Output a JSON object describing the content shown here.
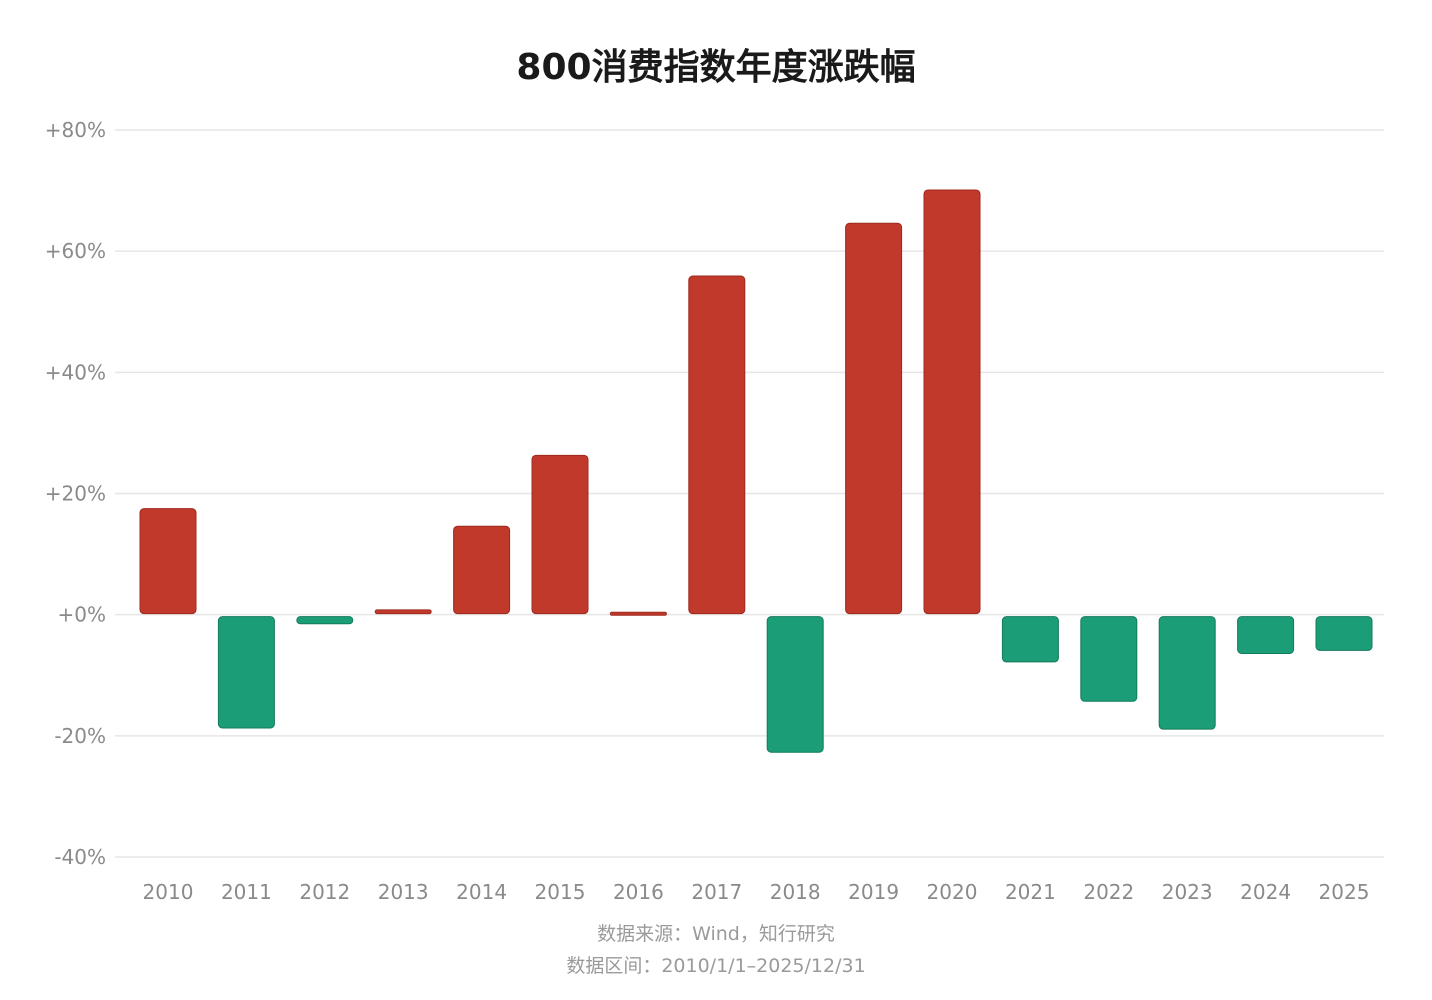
{
  "chart_data": {
    "type": "bar",
    "title": "800消费指数年度涨跌幅",
    "categories": [
      "2010",
      "2011",
      "2012",
      "2013",
      "2014",
      "2015",
      "2016",
      "2017",
      "2018",
      "2019",
      "2020",
      "2021",
      "2022",
      "2023",
      "2024",
      "2025"
    ],
    "values": [
      17.5,
      -18.7,
      -1.5,
      0.8,
      14.6,
      26.3,
      0.4,
      55.9,
      -22.7,
      64.6,
      70.1,
      -7.8,
      -14.3,
      -18.9,
      -6.4,
      -5.9
    ],
    "ylim": [
      -40,
      80
    ],
    "yticks": [
      80,
      60,
      40,
      20,
      0,
      -20,
      -40
    ],
    "ytick_labels": [
      "+80%",
      "+60%",
      "+40%",
      "+20%",
      "+0%",
      "-20%",
      "-40%"
    ],
    "grid": true,
    "colors": {
      "positive": "#c0392b",
      "negative": "#1b9e77",
      "grid": "#e6e6e6"
    }
  },
  "footer": {
    "source": "数据来源：Wind，知行研究",
    "range": "数据区间：2010/1/1–2025/12/31"
  }
}
